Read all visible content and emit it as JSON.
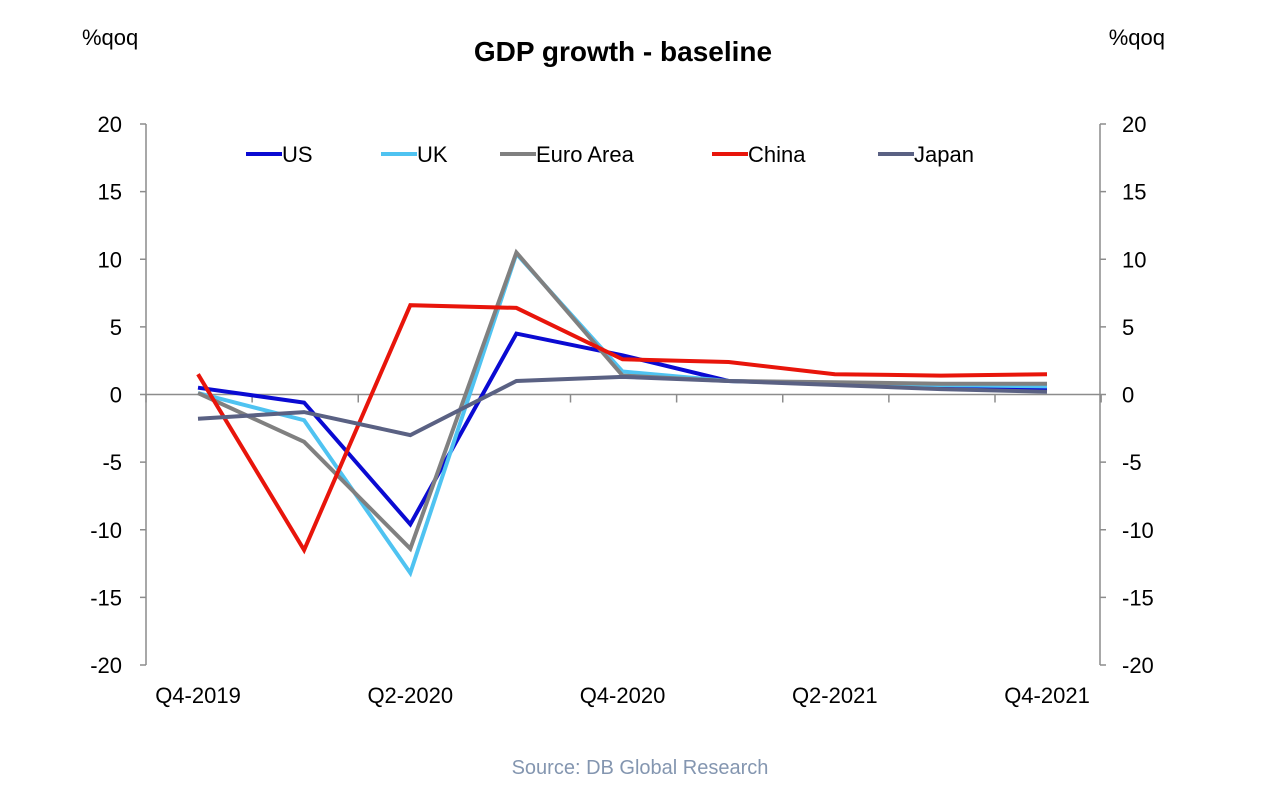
{
  "chart_data": {
    "type": "line",
    "title": "GDP growth - baseline",
    "ylabel_left": "%qoq",
    "ylabel_right": "%qoq",
    "ylim": [
      -20,
      20
    ],
    "yticks": [
      20,
      15,
      10,
      5,
      0,
      -5,
      -10,
      -15,
      -20
    ],
    "x": [
      "Q4-2019",
      "Q1-2020",
      "Q2-2020",
      "Q3-2020",
      "Q4-2020",
      "Q1-2021",
      "Q2-2021",
      "Q3-2021",
      "Q4-2021"
    ],
    "x_tick_labels": [
      "Q4-2019",
      "Q2-2020",
      "Q4-2020",
      "Q2-2021",
      "Q4-2021"
    ],
    "legend_position": "top",
    "grid": false,
    "series": [
      {
        "name": "US",
        "color": "#0a0ad2",
        "values": [
          0.5,
          -0.6,
          -9.6,
          4.5,
          2.9,
          1.0,
          0.8,
          0.5,
          0.4
        ]
      },
      {
        "name": "UK",
        "color": "#4fc3f1",
        "values": [
          0.1,
          -1.9,
          -13.2,
          10.4,
          1.7,
          1.0,
          0.8,
          0.7,
          0.6
        ]
      },
      {
        "name": "Euro Area",
        "color": "#808080",
        "values": [
          0.1,
          -3.5,
          -11.4,
          10.5,
          1.4,
          1.0,
          0.9,
          0.8,
          0.8
        ]
      },
      {
        "name": "China",
        "color": "#e8150b",
        "values": [
          1.5,
          -11.5,
          6.6,
          6.4,
          2.6,
          2.4,
          1.5,
          1.4,
          1.5
        ]
      },
      {
        "name": "Japan",
        "color": "#5a6183",
        "values": [
          -1.8,
          -1.3,
          -3.0,
          1.0,
          1.3,
          1.0,
          0.7,
          0.4,
          0.2
        ]
      }
    ],
    "source": "Source: DB Global Research"
  }
}
